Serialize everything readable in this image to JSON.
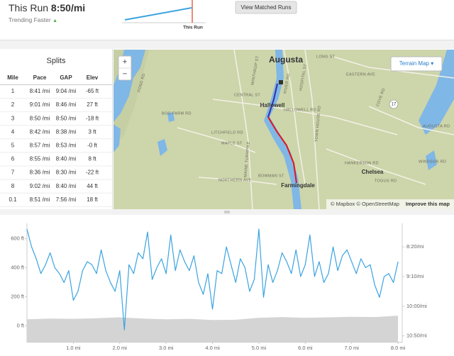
{
  "header": {
    "title": "This Run",
    "pace": "8:50/mi",
    "trend": "Trending Faster",
    "trend_icon": "▲",
    "trend_chart_label": "This Run",
    "button": "View Matched Runs"
  },
  "splits": {
    "title": "Splits",
    "columns": [
      "Mile",
      "Pace",
      "GAP",
      "Elev"
    ],
    "rows": [
      [
        "1",
        "8:41 /mi",
        "9:04 /mi",
        "-65 ft"
      ],
      [
        "2",
        "9:01 /mi",
        "8:46 /mi",
        "27 ft"
      ],
      [
        "3",
        "8:50 /mi",
        "8:50 /mi",
        "-18 ft"
      ],
      [
        "4",
        "8:42 /mi",
        "8:38 /mi",
        "3 ft"
      ],
      [
        "5",
        "8:57 /mi",
        "8:53 /mi",
        "-0 ft"
      ],
      [
        "6",
        "8:55 /mi",
        "8:40 /mi",
        "8 ft"
      ],
      [
        "7",
        "8:36 /mi",
        "8:30 /mi",
        "-22 ft"
      ],
      [
        "8",
        "9:02 /mi",
        "8:40 /mi",
        "44 ft"
      ],
      [
        "0.1",
        "8:51 /mi",
        "7:56 /mi",
        "18 ft"
      ]
    ]
  },
  "map": {
    "zoom_in": "+",
    "zoom_out": "−",
    "button": "Terrain Map ▾",
    "attribution": "© Mapbox © OpenStreetMap",
    "improve": "Improve this map",
    "places": [
      "Augusta",
      "Hallowell",
      "Farmingdale",
      "Chelsea"
    ],
    "roads": [
      "CENTRAL ST",
      "HALLOWELL RD",
      "MAPLE ST",
      "LITCHFIELD RD",
      "NORTHERN AVE",
      "BOWMAN ST",
      "HANKERSON RD",
      "AUGUSTA RD",
      "EASTERN AVE",
      "HOSPITAL ST",
      "WINDSOR RD",
      "TOGUS RD",
      "MAINE TURNPIKE",
      "POND RD",
      "BOG FARM RD",
      "WINTHROP ST",
      "RIVER RD",
      "TOWN HOUSE RD",
      "COVE RD",
      "LONG ST",
      "17"
    ]
  },
  "chart_data": {
    "type": "line",
    "xlim": [
      0,
      8.09
    ],
    "xticks": [
      {
        "value": 1,
        "label": "1.0 mi"
      },
      {
        "value": 2,
        "label": "2.0 mi"
      },
      {
        "value": 3,
        "label": "3.0 mi"
      },
      {
        "value": 4,
        "label": "4.0 mi"
      },
      {
        "value": 5,
        "label": "5.0 mi"
      },
      {
        "value": 6,
        "label": "6.0 mi"
      },
      {
        "value": 7,
        "label": "7.0 mi"
      },
      {
        "value": 8,
        "label": "8.0 mi"
      }
    ],
    "ylim": [
      -110,
      690
    ],
    "yticks": [
      {
        "value": 0,
        "label": "0 ft"
      },
      {
        "value": 200,
        "label": "200 ft"
      },
      {
        "value": 400,
        "label": "400 ft"
      },
      {
        "value": 600,
        "label": "600 ft"
      }
    ],
    "y2lim": [
      660,
      464
    ],
    "y2ticks": [
      {
        "value": 500,
        "label": "8:20/mi"
      },
      {
        "value": 550,
        "label": "9:10/mi"
      },
      {
        "value": 600,
        "label": "10:00/mi"
      },
      {
        "value": 650,
        "label": "10:50/mi"
      }
    ],
    "series": [
      {
        "type": "area",
        "color": "#d4d4d4",
        "x": [
          0,
          0.5,
          1,
          1.5,
          2,
          2.5,
          3,
          3.5,
          4,
          4.5,
          5,
          5.5,
          6,
          6.5,
          7,
          7.5,
          8
        ],
        "values": [
          45,
          50,
          48,
          52,
          58,
          50,
          45,
          48,
          40,
          42,
          55,
          60,
          55,
          58,
          62,
          60,
          70
        ]
      },
      {
        "type": "line",
        "axis": "y2",
        "color": "#3aa3e0",
        "x": [
          0,
          0.1,
          0.2,
          0.3,
          0.4,
          0.5,
          0.6,
          0.7,
          0.8,
          0.9,
          1,
          1.1,
          1.2,
          1.3,
          1.4,
          1.5,
          1.6,
          1.7,
          1.8,
          1.9,
          2,
          2.1,
          2.2,
          2.3,
          2.4,
          2.5,
          2.6,
          2.7,
          2.8,
          2.9,
          3,
          3.1,
          3.2,
          3.3,
          3.4,
          3.5,
          3.6,
          3.7,
          3.8,
          3.9,
          4,
          4.1,
          4.2,
          4.3,
          4.4,
          4.5,
          4.6,
          4.7,
          4.8,
          4.9,
          5,
          5.1,
          5.2,
          5.3,
          5.4,
          5.5,
          5.6,
          5.7,
          5.8,
          5.9,
          6,
          6.1,
          6.2,
          6.3,
          6.4,
          6.5,
          6.6,
          6.7,
          6.8,
          6.9,
          7,
          7.1,
          7.2,
          7.3,
          7.4,
          7.5,
          7.6,
          7.7,
          7.8,
          7.9,
          8
        ],
        "values": [
          470,
          500,
          520,
          545,
          530,
          510,
          535,
          545,
          560,
          540,
          590,
          575,
          540,
          525,
          530,
          545,
          505,
          540,
          560,
          575,
          540,
          640,
          530,
          545,
          510,
          520,
          475,
          555,
          535,
          520,
          545,
          480,
          540,
          505,
          525,
          540,
          515,
          560,
          580,
          545,
          605,
          540,
          545,
          500,
          530,
          560,
          520,
          535,
          575,
          555,
          470,
          585,
          530,
          560,
          540,
          510,
          525,
          545,
          505,
          550,
          530,
          480,
          550,
          525,
          560,
          545,
          500,
          540,
          515,
          505,
          525,
          545,
          520,
          535,
          530,
          565,
          585,
          550,
          545,
          560,
          525
        ]
      }
    ]
  }
}
